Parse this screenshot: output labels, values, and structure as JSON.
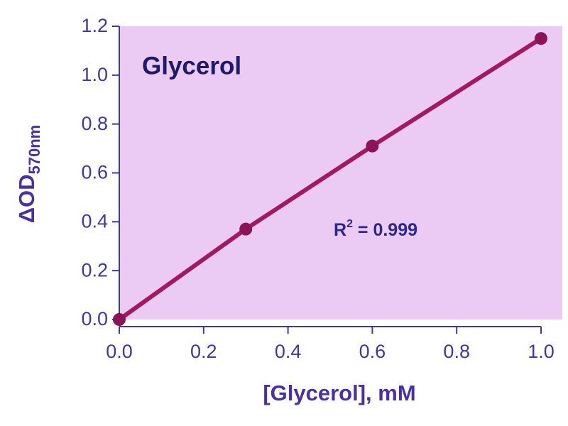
{
  "chart_data": {
    "type": "line",
    "title": "Glycerol",
    "x_label": "[Glycerol], mM",
    "y_label": {
      "base": "ΔOD",
      "sub": "570nm"
    },
    "annotation": {
      "base": "R",
      "sup": "2",
      "rest": " = 0.999"
    },
    "x": [
      0,
      0.3,
      0.6,
      1.0
    ],
    "series": [
      {
        "color": "#a3195f",
        "marker_color": "#8a1456",
        "values": [
          0,
          0.37,
          0.71,
          1.15
        ]
      }
    ],
    "xlim": [
      0,
      1.0
    ],
    "ylim": [
      0,
      1.2
    ],
    "xticks": [
      {
        "value": 0,
        "label": "0.0"
      },
      0.2,
      0.4,
      0.6,
      0.8,
      {
        "value": 1,
        "label": "1.0"
      }
    ],
    "yticks": [
      {
        "value": 0,
        "label": "0.0"
      },
      0.2,
      0.4,
      0.6,
      0.8,
      {
        "value": 1,
        "label": "1.0"
      },
      1.2
    ],
    "background": "#ebcaf3"
  }
}
